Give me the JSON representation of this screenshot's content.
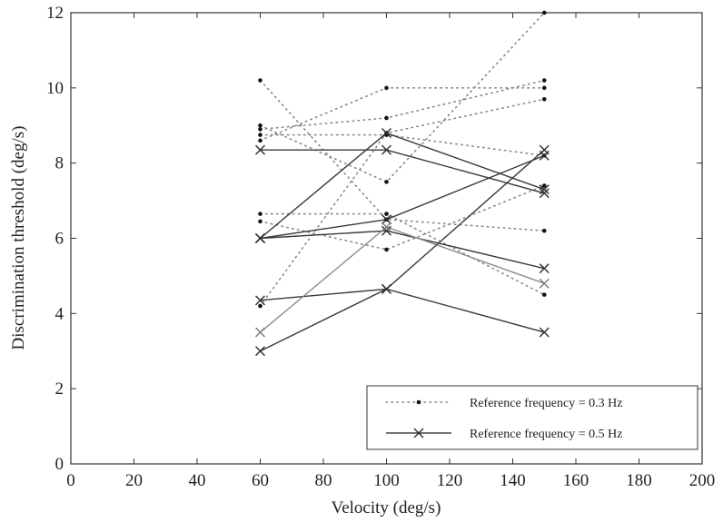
{
  "chart_data": {
    "type": "line",
    "title": "",
    "xlabel": "Velocity (deg/s)",
    "ylabel": "Discrimination threshold (deg/s)",
    "xlim": [
      0,
      200
    ],
    "ylim": [
      0,
      12
    ],
    "xticks": [
      "0",
      "20",
      "40",
      "60",
      "80",
      "100",
      "120",
      "140",
      "160",
      "180",
      "200"
    ],
    "yticks": [
      "0",
      "2",
      "4",
      "6",
      "8",
      "10",
      "12"
    ],
    "grid": false,
    "legend_position": "bottom-right",
    "legend": [
      {
        "label": "Reference frequency = 0.3 Hz",
        "style": "dotted-dot"
      },
      {
        "label": "Reference frequency = 0.5 Hz",
        "style": "solid-x"
      }
    ],
    "x": [
      60,
      100,
      150
    ],
    "series": [
      {
        "group": "Reference frequency = 0.3 Hz",
        "values": [
          10.2,
          6.5,
          6.2
        ]
      },
      {
        "group": "Reference frequency = 0.3 Hz",
        "values": [
          9.0,
          7.5,
          12.0
        ]
      },
      {
        "group": "Reference frequency = 0.3 Hz",
        "values": [
          8.9,
          9.2,
          10.2
        ]
      },
      {
        "group": "Reference frequency = 0.3 Hz",
        "values": [
          8.75,
          8.75,
          8.2
        ]
      },
      {
        "group": "Reference frequency = 0.3 Hz",
        "values": [
          8.6,
          10.0,
          10.0
        ]
      },
      {
        "group": "Reference frequency = 0.3 Hz",
        "values": [
          6.65,
          6.65,
          4.5
        ]
      },
      {
        "group": "Reference frequency = 0.3 Hz",
        "values": [
          6.45,
          5.7,
          7.4
        ]
      },
      {
        "group": "Reference frequency = 0.3 Hz",
        "values": [
          4.2,
          8.8,
          9.7
        ]
      },
      {
        "group": "Reference frequency = 0.5 Hz",
        "values": [
          8.35,
          8.35,
          7.2
        ]
      },
      {
        "group": "Reference frequency = 0.5 Hz",
        "values": [
          6.0,
          8.8,
          7.3
        ]
      },
      {
        "group": "Reference frequency = 0.5 Hz",
        "values": [
          6.0,
          6.5,
          8.2
        ]
      },
      {
        "group": "Reference frequency = 0.5 Hz",
        "values": [
          6.0,
          6.2,
          5.2
        ]
      },
      {
        "group": "Reference frequency = 0.5 Hz",
        "values": [
          4.35,
          4.65,
          3.5
        ]
      },
      {
        "group": "Reference frequency = 0.5 Hz",
        "values": [
          3.5,
          6.3,
          4.8
        ]
      },
      {
        "group": "Reference frequency = 0.5 Hz",
        "values": [
          3.0,
          4.65,
          8.35
        ]
      }
    ]
  }
}
